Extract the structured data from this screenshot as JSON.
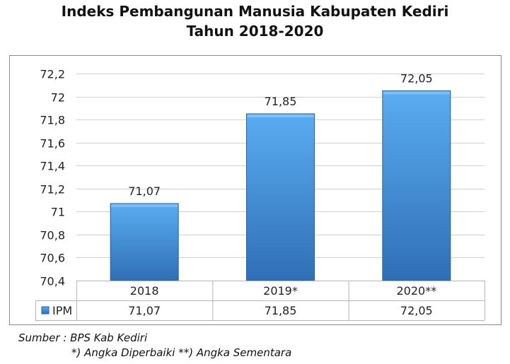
{
  "header": {
    "title_line1": "Indeks Pembangunan Manusia Kabupaten Kediri",
    "title_line2": "Tahun 2018-2020"
  },
  "chart_data": {
    "type": "bar",
    "categories": [
      "2018",
      "2019*",
      "2020**"
    ],
    "series": [
      {
        "name": "IPM",
        "values": [
          71.07,
          71.85,
          72.05
        ],
        "labels": [
          "71,07",
          "71,85",
          "72,05"
        ]
      }
    ],
    "ylim": [
      70.4,
      72.2
    ],
    "yticks": [
      70.4,
      70.6,
      70.8,
      71,
      71.2,
      71.4,
      71.6,
      71.8,
      72,
      72.2
    ],
    "ytick_labels": [
      "70,4",
      "70,6",
      "70,8",
      "71",
      "71,2",
      "71,4",
      "71,6",
      "71,8",
      "72",
      "72,2"
    ],
    "grid": true,
    "data_table": true,
    "bar_color": "#3d8fd6",
    "legend_key": "IPM"
  },
  "footer": {
    "source": "Sumber : BPS Kab Kediri",
    "note": "*) Angka Diperbaiki **) Angka Sementara"
  }
}
